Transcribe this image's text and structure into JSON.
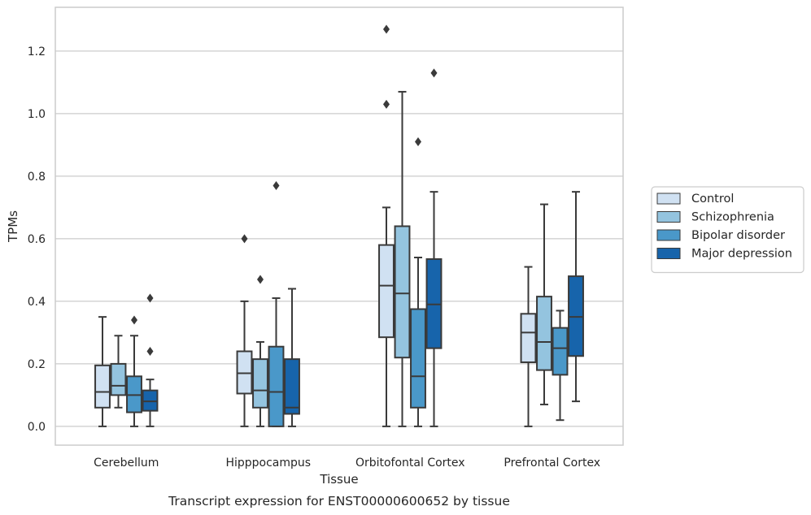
{
  "chart_data": {
    "type": "boxplot",
    "caption": "Transcript expression for ENST00000600652 by tissue",
    "xlabel": "Tissue",
    "ylabel": "TPMs",
    "ylim": [
      -0.06,
      1.34
    ],
    "yticks": [
      0.0,
      0.2,
      0.4,
      0.6,
      0.8,
      1.0,
      1.2
    ],
    "ytick_labels": [
      "0.0",
      "0.2",
      "0.4",
      "0.6",
      "0.8",
      "1.0",
      "1.2"
    ],
    "grid": "horizontal",
    "legend_position": "right",
    "categories": [
      "Cerebellum",
      "Hipppocampus",
      "Orbitofontal Cortex",
      "Prefrontal Cortex"
    ],
    "series": [
      {
        "name": "Control",
        "color": "#d0e1f2",
        "boxes": [
          {
            "whislo": 0.0,
            "q1": 0.06,
            "med": 0.11,
            "q3": 0.195,
            "whishi": 0.35,
            "fliers": []
          },
          {
            "whislo": 0.0,
            "q1": 0.105,
            "med": 0.17,
            "q3": 0.24,
            "whishi": 0.4,
            "fliers": [
              0.6
            ]
          },
          {
            "whislo": 0.0,
            "q1": 0.285,
            "med": 0.45,
            "q3": 0.58,
            "whishi": 0.7,
            "fliers": [
              1.03,
              1.27
            ]
          },
          {
            "whislo": 0.0,
            "q1": 0.205,
            "med": 0.3,
            "q3": 0.36,
            "whishi": 0.51,
            "fliers": []
          }
        ]
      },
      {
        "name": "Schizophrenia",
        "color": "#94c4df",
        "boxes": [
          {
            "whislo": 0.06,
            "q1": 0.1,
            "med": 0.13,
            "q3": 0.2,
            "whishi": 0.29,
            "fliers": []
          },
          {
            "whislo": 0.0,
            "q1": 0.06,
            "med": 0.115,
            "q3": 0.215,
            "whishi": 0.27,
            "fliers": [
              0.47
            ]
          },
          {
            "whislo": 0.0,
            "q1": 0.22,
            "med": 0.425,
            "q3": 0.64,
            "whishi": 1.07,
            "fliers": []
          },
          {
            "whislo": 0.07,
            "q1": 0.18,
            "med": 0.27,
            "q3": 0.415,
            "whishi": 0.71,
            "fliers": []
          }
        ]
      },
      {
        "name": "Bipolar disorder",
        "color": "#4a98c9",
        "boxes": [
          {
            "whislo": 0.0,
            "q1": 0.045,
            "med": 0.1,
            "q3": 0.16,
            "whishi": 0.29,
            "fliers": [
              0.34
            ]
          },
          {
            "whislo": 0.0,
            "q1": 0.0,
            "med": 0.11,
            "q3": 0.255,
            "whishi": 0.41,
            "fliers": [
              0.77
            ]
          },
          {
            "whislo": 0.0,
            "q1": 0.06,
            "med": 0.16,
            "q3": 0.375,
            "whishi": 0.54,
            "fliers": [
              0.91
            ]
          },
          {
            "whislo": 0.02,
            "q1": 0.165,
            "med": 0.25,
            "q3": 0.315,
            "whishi": 0.37,
            "fliers": []
          }
        ]
      },
      {
        "name": "Major depression",
        "color": "#1764ab",
        "boxes": [
          {
            "whislo": 0.0,
            "q1": 0.05,
            "med": 0.08,
            "q3": 0.115,
            "whishi": 0.15,
            "fliers": [
              0.24,
              0.41
            ]
          },
          {
            "whislo": 0.0,
            "q1": 0.04,
            "med": 0.06,
            "q3": 0.215,
            "whishi": 0.44,
            "fliers": []
          },
          {
            "whislo": 0.0,
            "q1": 0.25,
            "med": 0.39,
            "q3": 0.535,
            "whishi": 0.75,
            "fliers": [
              1.13
            ]
          },
          {
            "whislo": 0.08,
            "q1": 0.225,
            "med": 0.35,
            "q3": 0.48,
            "whishi": 0.75,
            "fliers": []
          }
        ]
      }
    ]
  }
}
